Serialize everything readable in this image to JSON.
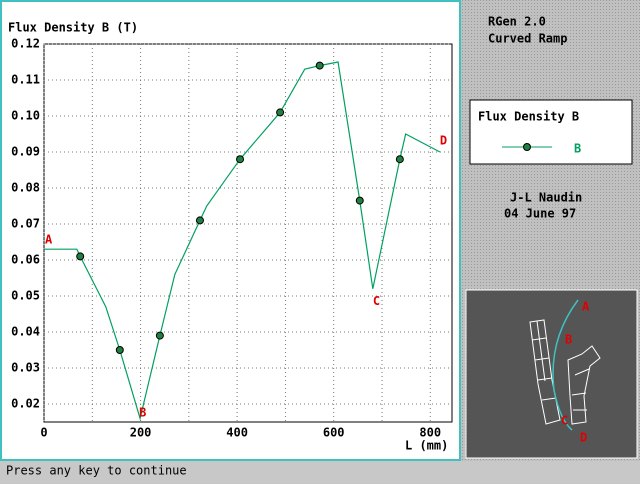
{
  "chart_data": {
    "type": "line",
    "title": "Flux Density B (T)",
    "x_label": "L (mm)",
    "xlim": [
      0,
      845
    ],
    "ylim": [
      0.015,
      0.12
    ],
    "xticks": [
      0,
      200,
      400,
      600,
      800
    ],
    "xgrid": [
      0,
      100,
      200,
      300,
      400,
      500,
      600,
      700,
      800
    ],
    "yticks": [
      0.02,
      0.03,
      0.04,
      0.05,
      0.06,
      0.07,
      0.08,
      0.09,
      {
        "value": 0.1,
        "label": "0.10"
      },
      0.11,
      0.12
    ],
    "grid": true,
    "legend_title": "Flux Density B",
    "series": [
      {
        "name": "B",
        "color": "#00a060",
        "x": [
          0,
          68,
          75,
          128,
          157,
          199,
          240,
          271,
          323,
          337,
          406,
          489,
          540,
          571,
          609,
          654,
          681,
          737,
          749,
          820
        ],
        "values": [
          0.063,
          0.063,
          0.061,
          0.047,
          0.035,
          0.016,
          0.039,
          0.056,
          0.071,
          0.075,
          0.088,
          0.101,
          0.113,
          0.114,
          0.115,
          0.0765,
          0.052,
          0.088,
          0.095,
          0.09
        ],
        "points": {
          "x": [
            75,
            157,
            240,
            323,
            406,
            489,
            571,
            654,
            737
          ],
          "values": [
            0.061,
            0.035,
            0.039,
            0.071,
            0.088,
            0.101,
            0.114,
            0.0765,
            0.088
          ]
        }
      }
    ],
    "annotations": [
      {
        "text": "A",
        "x": 2,
        "y": 0.0655
      },
      {
        "text": "B",
        "x": 197,
        "y": 0.0175
      },
      {
        "text": "C",
        "x": 681,
        "y": 0.0485
      },
      {
        "text": "D",
        "x": 820,
        "y": 0.093
      }
    ]
  },
  "panel": {
    "program": "RGen 2.0",
    "subtitle": "Curved Ramp",
    "author": "J-L Naudin",
    "date": "04 June 97",
    "diagram_labels": [
      "A",
      "B",
      "C",
      "D"
    ]
  },
  "status": "Press any key to continue"
}
